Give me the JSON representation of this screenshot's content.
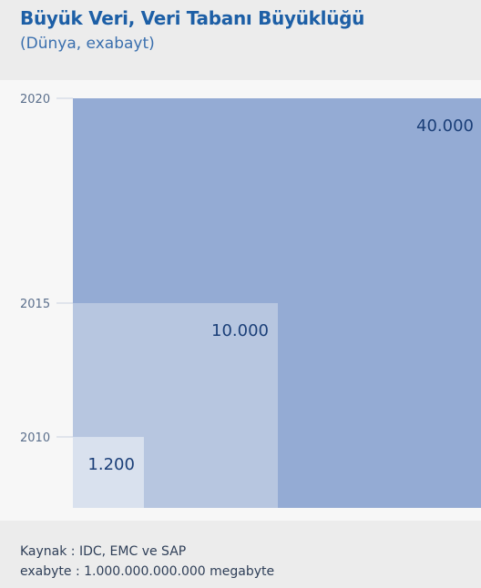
{
  "header": {
    "title": "Büyük Veri, Veri Tabanı Büyüklüğü",
    "subtitle": "(Dünya, exabayt)"
  },
  "footer": {
    "source": "Kaynak : IDC, EMC ve SAP",
    "note": "exabyte : 1.000.000.000.000 megabyte"
  },
  "colors": {
    "title": "#1d5fa6",
    "subtitle": "#3a6fae",
    "square_2020": "#94abd4",
    "square_2015": "#b7c6e0",
    "square_2010": "#d9e1ee",
    "value_label": "#1b3f78",
    "axis_label": "#5b6f8c"
  },
  "chart_data": {
    "type": "area",
    "encoding": "nested squares (area proportional to value)",
    "categories": [
      "2010",
      "2015",
      "2020"
    ],
    "values": [
      1200,
      10000,
      40000
    ],
    "value_labels": [
      "1.200",
      "10.000",
      "40.000"
    ],
    "xlabel": "",
    "ylabel": "",
    "legend": "none",
    "grid": false
  }
}
